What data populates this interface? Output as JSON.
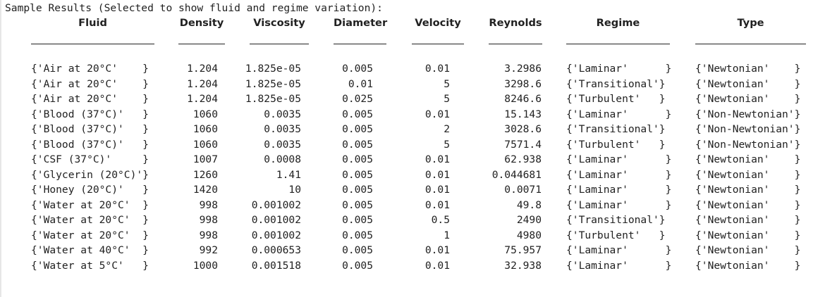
{
  "heading": "Sample Results (Selected to show fluid and regime variation):",
  "columns": [
    "Fluid",
    "Density",
    "Viscosity",
    "Diameter",
    "Velocity",
    "Reynolds",
    "Regime",
    "Type"
  ],
  "rows": [
    [
      "{'Air at 20°C'    }",
      "1.204",
      "1.825e-05",
      "0.005",
      "0.01",
      "3.2986",
      "{'Laminar'      }",
      "{'Newtonian'    }"
    ],
    [
      "{'Air at 20°C'    }",
      "1.204",
      "1.825e-05",
      "0.01",
      "5",
      "3298.6",
      "{'Transitional'}",
      "{'Newtonian'    }"
    ],
    [
      "{'Air at 20°C'    }",
      "1.204",
      "1.825e-05",
      "0.025",
      "5",
      "8246.6",
      "{'Turbulent'   }",
      "{'Newtonian'    }"
    ],
    [
      "{'Blood (37°C)'   }",
      "1060",
      "0.0035",
      "0.005",
      "0.01",
      "15.143",
      "{'Laminar'      }",
      "{'Non-Newtonian'}"
    ],
    [
      "{'Blood (37°C)'   }",
      "1060",
      "0.0035",
      "0.005",
      "2",
      "3028.6",
      "{'Transitional'}",
      "{'Non-Newtonian'}"
    ],
    [
      "{'Blood (37°C)'   }",
      "1060",
      "0.0035",
      "0.005",
      "5",
      "7571.4",
      "{'Turbulent'   }",
      "{'Non-Newtonian'}"
    ],
    [
      "{'CSF (37°C)'     }",
      "1007",
      "0.0008",
      "0.005",
      "0.01",
      "62.938",
      "{'Laminar'      }",
      "{'Newtonian'    }"
    ],
    [
      "{'Glycerin (20°C)'}",
      "1260",
      "1.41",
      "0.005",
      "0.01",
      "0.044681",
      "{'Laminar'      }",
      "{'Newtonian'    }"
    ],
    [
      "{'Honey (20°C)'   }",
      "1420",
      "10",
      "0.005",
      "0.01",
      "0.0071",
      "{'Laminar'      }",
      "{'Newtonian'    }"
    ],
    [
      "{'Water at 20°C'  }",
      "998",
      "0.001002",
      "0.005",
      "0.01",
      "49.8",
      "{'Laminar'      }",
      "{'Newtonian'    }"
    ],
    [
      "{'Water at 20°C'  }",
      "998",
      "0.001002",
      "0.005",
      "0.5",
      "2490",
      "{'Transitional'}",
      "{'Newtonian'    }"
    ],
    [
      "{'Water at 20°C'  }",
      "998",
      "0.001002",
      "0.005",
      "1",
      "4980",
      "{'Turbulent'   }",
      "{'Newtonian'    }"
    ],
    [
      "{'Water at 40°C'  }",
      "992",
      "0.000653",
      "0.005",
      "0.01",
      "75.957",
      "{'Laminar'      }",
      "{'Newtonian'    }"
    ],
    [
      "{'Water at 5°C'   }",
      "1000",
      "0.001518",
      "0.005",
      "0.01",
      "32.938",
      "{'Laminar'      }",
      "{'Newtonian'    }"
    ]
  ]
}
